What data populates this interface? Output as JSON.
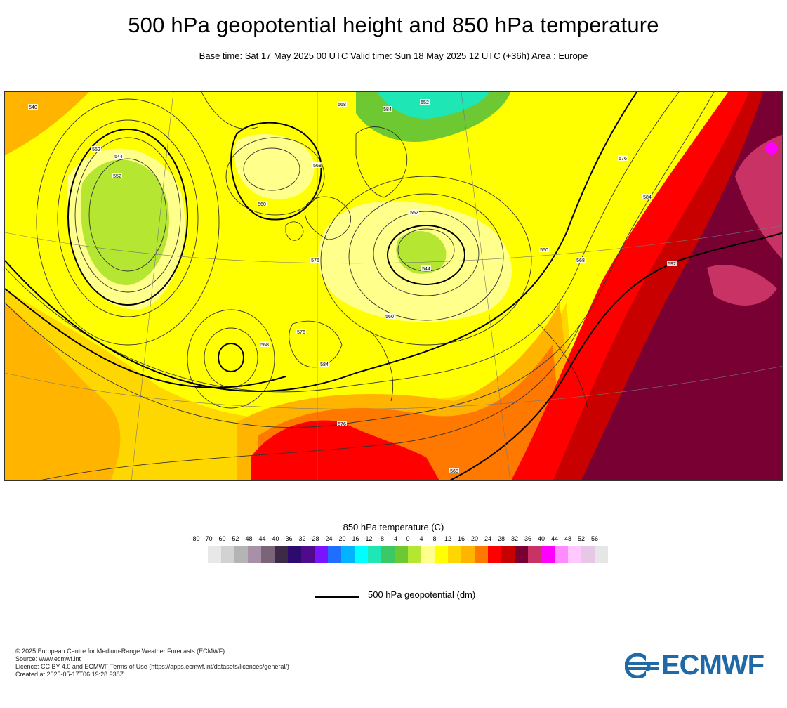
{
  "header": {
    "title": "500 hPa geopotential height and 850 hPa temperature",
    "subtitle": "Base time: Sat 17 May 2025 00 UTC Valid time: Sun 18 May 2025 12 UTC (+36h) Area : Europe"
  },
  "map": {
    "contour_labels": [
      "540",
      "552",
      "544",
      "552",
      "560",
      "568",
      "576",
      "568",
      "584",
      "552",
      "552",
      "544",
      "560",
      "568",
      "576",
      "584",
      "576",
      "568",
      "592",
      "576",
      "584",
      "560",
      "568"
    ]
  },
  "legend": {
    "temperature_title": "850 hPa temperature (C)",
    "ticks": [
      "-80",
      "-70",
      "-60",
      "-52",
      "-48",
      "-44",
      "-40",
      "-36",
      "-32",
      "-28",
      "-24",
      "-20",
      "-16",
      "-12",
      "-8",
      "-4",
      "0",
      "4",
      "8",
      "12",
      "16",
      "20",
      "24",
      "28",
      "32",
      "36",
      "40",
      "44",
      "48",
      "52",
      "56"
    ],
    "colors": [
      "#e8e8e8",
      "#d2d2d2",
      "#b4b4b4",
      "#a891a8",
      "#7a6478",
      "#3c2a46",
      "#2d0a6e",
      "#500a8c",
      "#7a14ff",
      "#1e6eff",
      "#00b4ff",
      "#00ffff",
      "#1ee6b4",
      "#3cc864",
      "#6ec832",
      "#b4e632",
      "#ffff8c",
      "#ffff00",
      "#ffd700",
      "#ffb400",
      "#ff7800",
      "#ff0000",
      "#c80000",
      "#780032",
      "#c83264",
      "#ff00ff",
      "#ff8cff",
      "#ffc8ff",
      "#e6c8e6",
      "#e6e6e6"
    ],
    "geopotential_label": "500 hPa geopotential (dm)"
  },
  "footer": {
    "lines": [
      "© 2025 European Centre for Medium-Range Weather Forecasts (ECMWF)",
      "Source: www.ecmwf.int",
      "Licence: CC BY 4.0 and ECMWF Terms of Use (https://apps.ecmwf.int/datasets/licences/general/)",
      "Created at 2025-05-17T06:19:28.938Z"
    ],
    "logo_text": "ECMWF",
    "logo_color": "#1f6aa6"
  }
}
